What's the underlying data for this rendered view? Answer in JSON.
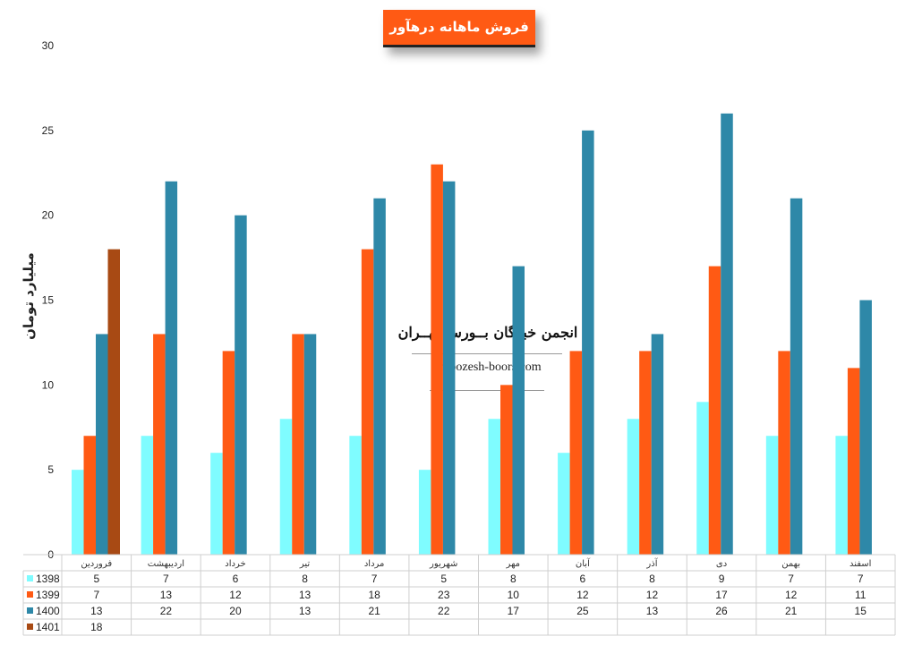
{
  "chart_data": {
    "type": "bar",
    "title": "فروش ماهانه درهآور",
    "ylabel": "میلیارد تومان",
    "xlabel": "",
    "ylim": [
      0,
      30
    ],
    "y_ticks": [
      0,
      5,
      10,
      15,
      20,
      25,
      30
    ],
    "grid": false,
    "legend": "data-table-left",
    "categories": [
      "فروردین",
      "اردیبهشت",
      "خرداد",
      "تیر",
      "مرداد",
      "شهریور",
      "مهر",
      "آبان",
      "آذر",
      "دی",
      "بهمن",
      "اسفند"
    ],
    "series": [
      {
        "name": "1398",
        "color": "#7ffcff",
        "values": [
          5,
          7,
          6,
          8,
          7,
          5,
          8,
          6,
          8,
          9,
          7,
          7
        ]
      },
      {
        "name": "1399",
        "color": "#ff5a14",
        "values": [
          7,
          13,
          12,
          13,
          18,
          23,
          10,
          12,
          12,
          17,
          12,
          11
        ]
      },
      {
        "name": "1400",
        "color": "#2e88a8",
        "values": [
          13,
          22,
          20,
          13,
          21,
          22,
          17,
          25,
          13,
          26,
          21,
          15
        ]
      },
      {
        "name": "1401",
        "color": "#a84a14",
        "values": [
          18,
          null,
          null,
          null,
          null,
          null,
          null,
          null,
          null,
          null,
          null,
          null
        ]
      }
    ]
  },
  "watermark": {
    "title": "انجمن خبرگان بــورس تهــران",
    "url": "amoozesh-boors.com"
  }
}
